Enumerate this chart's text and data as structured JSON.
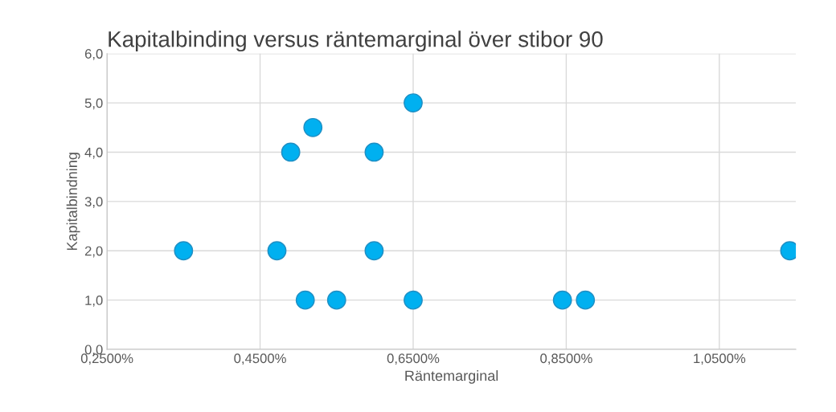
{
  "chart_data": {
    "type": "scatter",
    "title": "Kapitalbinding versus räntemarginal över stibor 90",
    "xlabel": "Räntemarginal",
    "ylabel": "Kapitalbindning",
    "x": [
      0.35,
      0.472,
      0.49,
      0.509,
      0.519,
      0.55,
      0.599,
      0.599,
      0.65,
      0.65,
      0.845,
      0.875,
      1.142
    ],
    "series": [
      {
        "color": "#00b0f0",
        "values": [
          2,
          2,
          4,
          1,
          4.5,
          1,
          4,
          2,
          5,
          1,
          1,
          1,
          2
        ]
      }
    ],
    "xlim": [
      0.25,
      1.15
    ],
    "xticks": [
      {
        "value": 0.25,
        "label": "0,2500%"
      },
      {
        "value": 0.45,
        "label": "0,4500%"
      },
      {
        "value": 0.65,
        "label": "0,6500%"
      },
      {
        "value": 0.85,
        "label": "0,8500%"
      },
      {
        "value": 1.05,
        "label": "1,0500%"
      }
    ],
    "ylim": [
      0,
      6
    ],
    "yticks": [
      {
        "value": 0,
        "label": "0,0"
      },
      {
        "value": 1,
        "label": "1,0"
      },
      {
        "value": 2,
        "label": "2,0"
      },
      {
        "value": 3,
        "label": "3,0"
      },
      {
        "value": 4,
        "label": "4,0"
      },
      {
        "value": 5,
        "label": "5,0"
      },
      {
        "value": 6,
        "label": "6,0"
      }
    ],
    "grid": true,
    "marker": "circle",
    "legend": false
  }
}
